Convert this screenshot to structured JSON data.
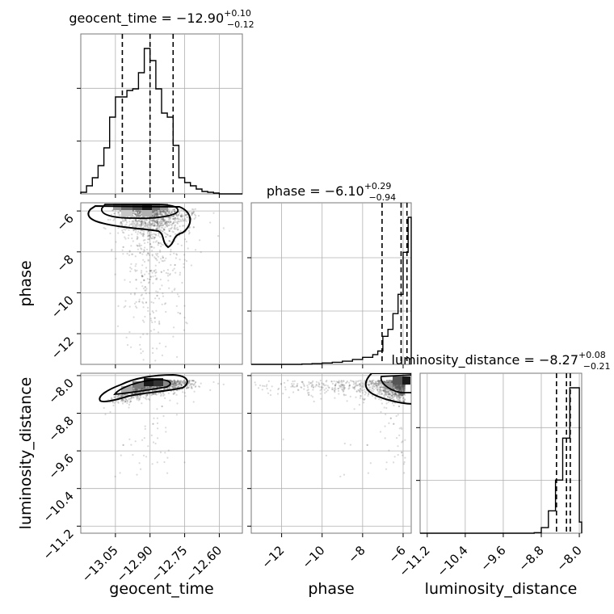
{
  "chart_data": {
    "type": "corner",
    "parameters": [
      "geocent_time",
      "phase",
      "luminosity_distance"
    ],
    "titles": [
      {
        "param": "geocent_time",
        "prefix": "geocent_time = ",
        "median": "−12.90",
        "plus": "+0.10",
        "minus": "−0.12"
      },
      {
        "param": "phase",
        "prefix": "phase = ",
        "median": "−6.10",
        "plus": "+0.29",
        "minus": "−0.94"
      },
      {
        "param": "luminosity_distance",
        "prefix": "luminosity_distance = ",
        "median": "−8.27",
        "plus": "+0.08",
        "minus": "−0.21"
      }
    ],
    "axes": {
      "geocent_time": {
        "range": [
          -13.2,
          -12.5
        ],
        "ticks": [
          -13.05,
          -12.9,
          -12.75,
          -12.6
        ],
        "tick_labels": [
          "−13.05",
          "−12.90",
          "−12.75",
          "−12.60"
        ]
      },
      "phase": {
        "range": [
          -13.5,
          -5.6
        ],
        "ticks": [
          -12,
          -10,
          -8,
          -6
        ],
        "tick_labels": [
          "−12",
          "−10",
          "−8",
          "−6"
        ]
      },
      "luminosity_distance": {
        "range": [
          -11.35,
          -7.95
        ],
        "ticks": [
          -11.2,
          -10.4,
          -9.6,
          -8.8,
          -8.0
        ],
        "tick_labels": [
          "−11.2",
          "−10.4",
          "−9.6",
          "−8.8",
          "−8.0"
        ]
      }
    },
    "quantiles": {
      "geocent_time": [
        -13.02,
        -12.9,
        -12.8
      ],
      "phase": [
        -7.04,
        -6.1,
        -5.81
      ],
      "luminosity_distance": [
        -8.48,
        -8.27,
        -8.19
      ]
    },
    "histograms": {
      "geocent_time": {
        "edges": [
          -13.2,
          -13.175,
          -13.15,
          -13.125,
          -13.1,
          -13.075,
          -13.05,
          -13.025,
          -13.0,
          -12.975,
          -12.95,
          -12.925,
          -12.9,
          -12.875,
          -12.85,
          -12.825,
          -12.8,
          -12.775,
          -12.75,
          -12.725,
          -12.7,
          -12.675,
          -12.65,
          -12.625,
          -12.6,
          -12.575,
          -12.55,
          -12.525,
          -12.5
        ],
        "counts": [
          2,
          10,
          20,
          35,
          57,
          95,
          120,
          120,
          128,
          130,
          150,
          180,
          165,
          130,
          100,
          95,
          60,
          20,
          14,
          10,
          6,
          3,
          2,
          1,
          0,
          0,
          0,
          0
        ]
      },
      "phase": {
        "edges": [
          -13.5,
          -13.0,
          -12.5,
          -12.0,
          -11.5,
          -11.0,
          -10.5,
          -10.0,
          -9.5,
          -9.0,
          -8.5,
          -8.0,
          -7.5,
          -7.25,
          -7.0,
          -6.75,
          -6.5,
          -6.25,
          -6.0,
          -5.75,
          -5.6
        ],
        "counts": [
          0,
          0,
          0,
          0,
          0,
          1,
          2,
          4,
          6,
          9,
          14,
          20,
          28,
          38,
          80,
          100,
          145,
          200,
          320,
          420
        ]
      },
      "luminosity_distance": {
        "edges": [
          -11.35,
          -11.2,
          -11.05,
          -10.9,
          -10.75,
          -10.6,
          -10.45,
          -10.3,
          -10.15,
          -10.0,
          -9.85,
          -9.7,
          -9.55,
          -9.4,
          -9.25,
          -9.1,
          -8.95,
          -8.8,
          -8.65,
          -8.5,
          -8.35,
          -8.2,
          -8.0,
          -7.95
        ],
        "counts": [
          0,
          0,
          0,
          0,
          0,
          0,
          0,
          0,
          0,
          0,
          0,
          0,
          0,
          0,
          0,
          0,
          1,
          10,
          40,
          95,
          170,
          260,
          20
        ]
      }
    },
    "grid": true,
    "legend": "none"
  }
}
